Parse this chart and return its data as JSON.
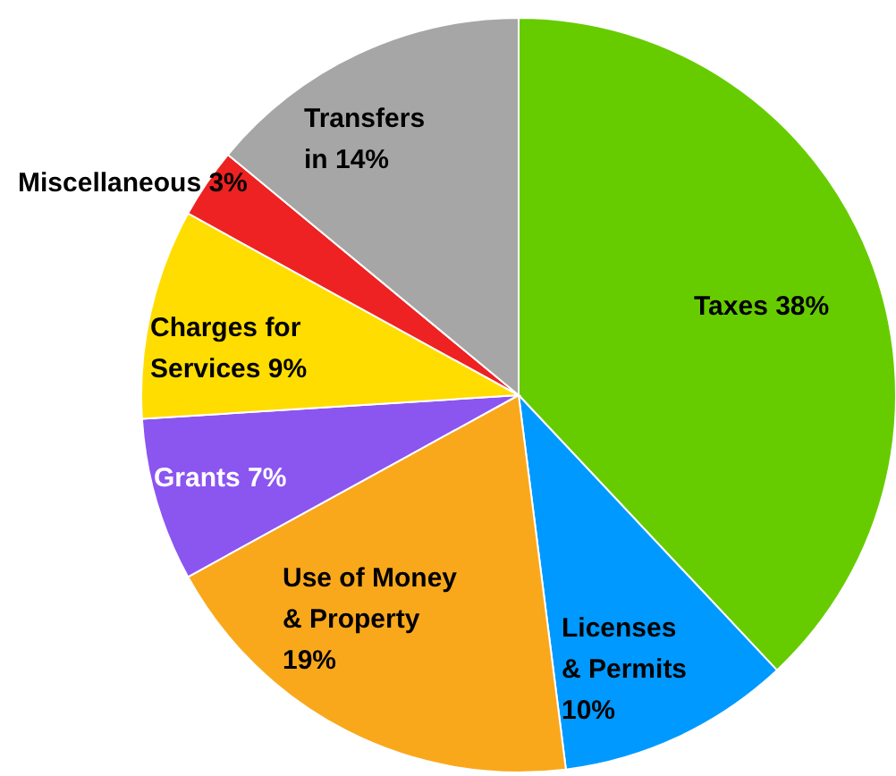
{
  "chart_data": {
    "type": "pie",
    "categories": [
      "Taxes",
      "Licenses & Permits",
      "Use of Money & Property",
      "Grants",
      "Charges for Services",
      "Miscellaneous",
      "Transfers in"
    ],
    "values": [
      38,
      10,
      19,
      7,
      9,
      3,
      14
    ],
    "colors": [
      "#66cc00",
      "#0099ff",
      "#f9a81c",
      "#8b55f0",
      "#ffdd00",
      "#ee2222",
      "#a6a6a6"
    ],
    "value_labels": [
      "38%",
      "10%",
      "19%",
      "7%",
      "9%",
      "3%",
      "14%"
    ]
  }
}
